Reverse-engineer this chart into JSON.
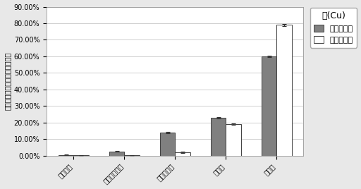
{
  "categories": [
    "可交换态",
    "碳酸盐结合态",
    "铁锶氧化态",
    "有机态",
    "残渣态"
  ],
  "series": [
    {
      "label": "样地熏之前",
      "values": [
        0.005,
        0.025,
        0.14,
        0.23,
        0.6
      ],
      "errors": [
        0.001,
        0.002,
        0.005,
        0.005,
        0.005
      ],
      "color": "#808080",
      "edgecolor": "#404040",
      "hatch": ""
    },
    {
      "label": "样地熏之后",
      "values": [
        0.001,
        0.001,
        0.02,
        0.19,
        0.79
      ],
      "errors": [
        0.0005,
        0.0005,
        0.003,
        0.005,
        0.005
      ],
      "color": "#ffffff",
      "edgecolor": "#404040",
      "hatch": ""
    }
  ],
  "title": "铜(Cu)",
  "ylabel": "每级分组占重金属总量的百分比",
  "ylim": [
    0,
    0.9
  ],
  "yticks": [
    0.0,
    0.1,
    0.2,
    0.3,
    0.4,
    0.5,
    0.6,
    0.7,
    0.8,
    0.9
  ],
  "bar_width": 0.3,
  "background_color": "#e8e8e8",
  "plot_bg_color": "#ffffff",
  "grid_color": "#c8c8c8",
  "title_fontsize": 9,
  "label_fontsize": 7,
  "tick_fontsize": 7,
  "legend_fontsize": 8,
  "xticklabel_rotation": 45
}
